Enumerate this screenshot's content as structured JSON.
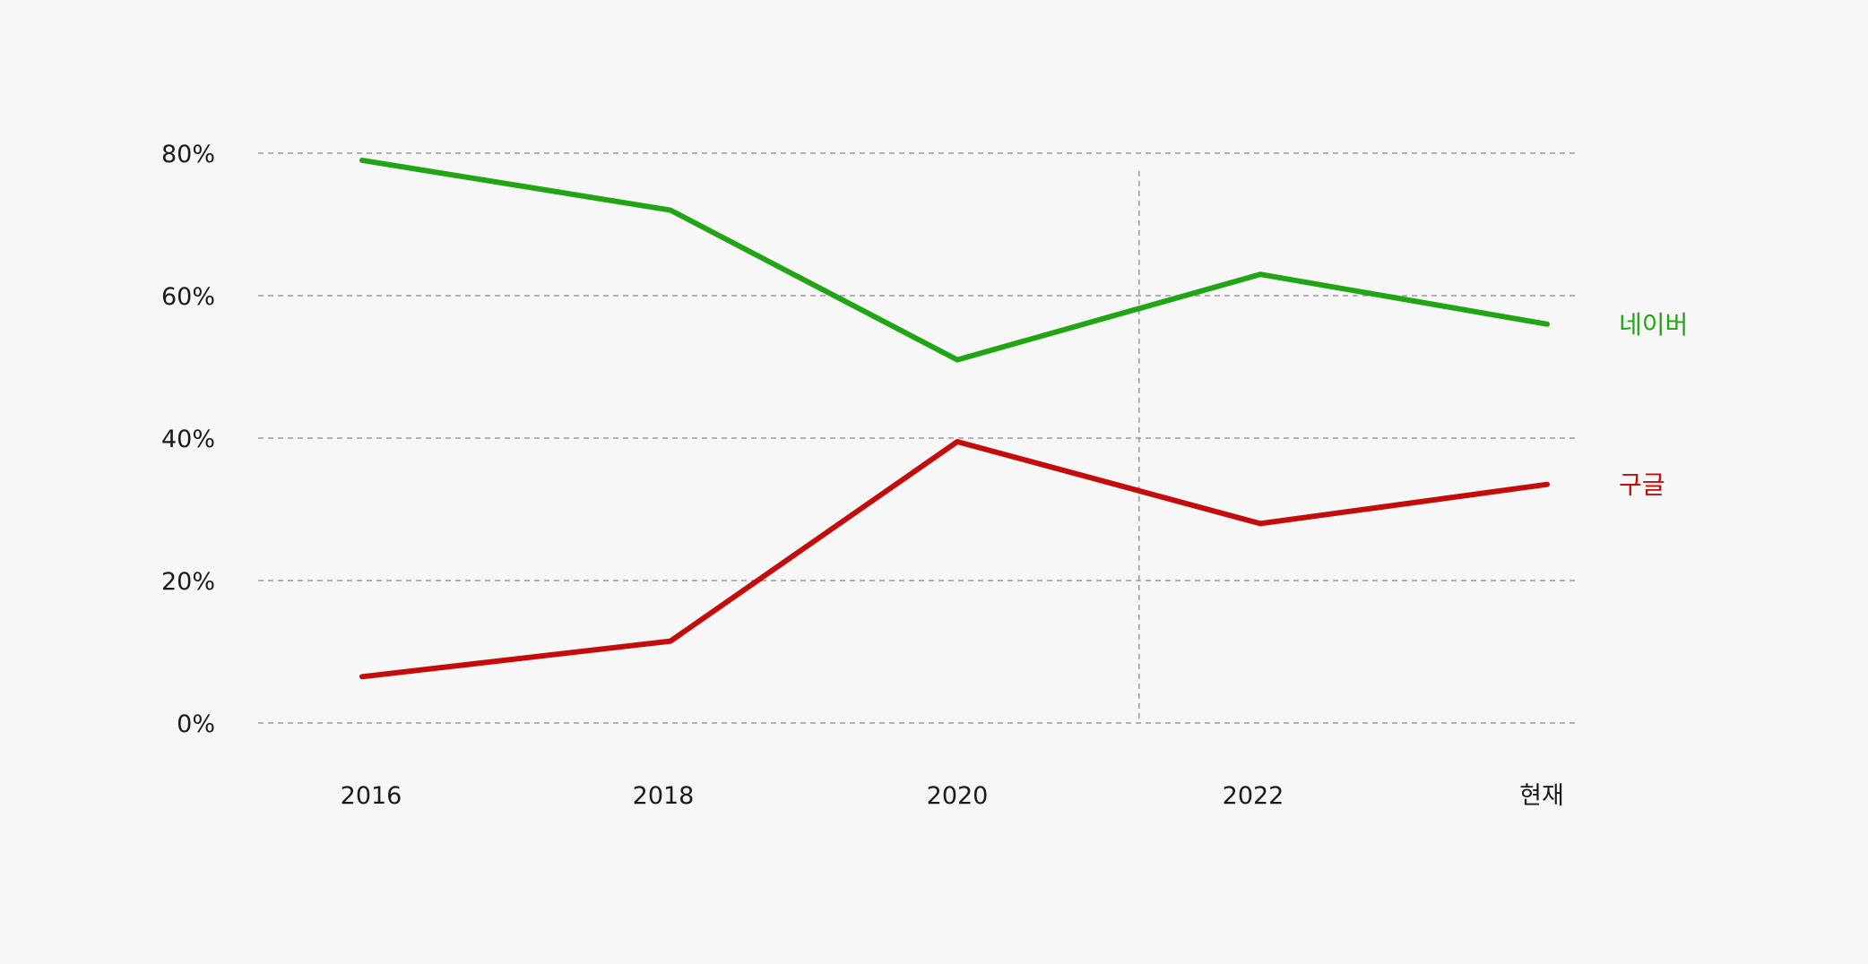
{
  "chart_data": {
    "type": "line",
    "categories": [
      "2016",
      "2018",
      "2020",
      "2022",
      "현재"
    ],
    "ylim": [
      0,
      80
    ],
    "yticks": [
      0,
      20,
      40,
      60,
      80
    ],
    "ytick_labels": [
      "0%",
      "20%",
      "40%",
      "60%",
      "80%"
    ],
    "grid": true,
    "reference_line_x": 2021.2,
    "legend": "direct labels at right end of lines",
    "series": [
      {
        "name": "네이버",
        "color": "#22a514",
        "values": [
          79,
          72,
          51,
          63,
          56
        ]
      },
      {
        "name": "구글",
        "color": "#c40c0c",
        "values": [
          6.5,
          11.5,
          39.5,
          28,
          33.5
        ]
      }
    ]
  }
}
